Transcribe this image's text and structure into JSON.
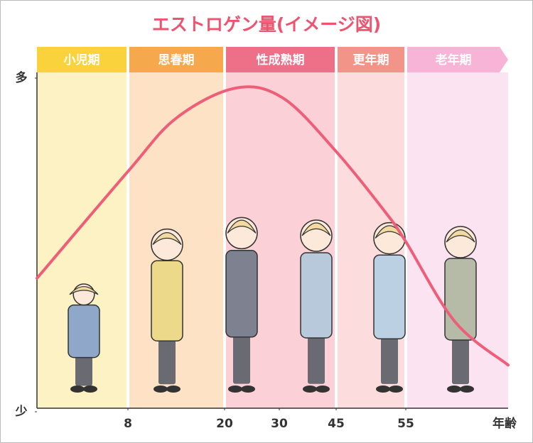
{
  "chart_data": {
    "type": "line",
    "title": "エストロゲン量(イメージ図)",
    "x_label": "年齢",
    "x": [
      0,
      8,
      14,
      22,
      31,
      45,
      52,
      55,
      67,
      80
    ],
    "series": [
      {
        "color": "#ef5e78",
        "values": [
          40,
          72,
          88,
          97,
          94,
          78,
          60,
          51,
          27,
          14
        ]
      }
    ],
    "xlim": [
      0,
      80
    ],
    "xticks": [
      8,
      20,
      30,
      45,
      55
    ],
    "ylim": [
      0,
      100
    ],
    "yticks": [
      {
        "value": 0,
        "label": "少"
      },
      {
        "value": 100,
        "label": "多"
      }
    ],
    "phases": [
      {
        "name": "小児期",
        "start": 0,
        "end": 8,
        "header_color": "#f9d23c",
        "color": "#fdf2c4"
      },
      {
        "name": "思春期",
        "start": 8,
        "end": 20,
        "header_color": "#f6a84c",
        "color": "#fde2c6"
      },
      {
        "name": "性成熟期",
        "start": 20,
        "end": 45,
        "header_color": "#ee6f88",
        "color": "#fbd0d7"
      },
      {
        "name": "更年期",
        "start": 45,
        "end": 55,
        "header_color": "#f39489",
        "color": "#fcdcdd"
      },
      {
        "name": "老年期",
        "start": 55,
        "end": 80,
        "header_color": "#f7b4d6",
        "color": "#fce3f1"
      }
    ]
  }
}
